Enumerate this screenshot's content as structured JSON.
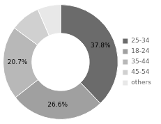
{
  "chart_data": {
    "type": "donut",
    "categories": [
      "25-34",
      "18-24",
      "35-44",
      "45-54",
      "others"
    ],
    "values": [
      37.8,
      26.6,
      20.7,
      8.4,
      6.5
    ],
    "value_labels": [
      "37.8%",
      "26.6%",
      "20.7%",
      null,
      null
    ],
    "data_labels": true,
    "colors": [
      "#6b6b6b",
      "#a0a0a0",
      "#b8b8b8",
      "#d0d0d0",
      "#e8e8e8"
    ],
    "legend": "right"
  }
}
